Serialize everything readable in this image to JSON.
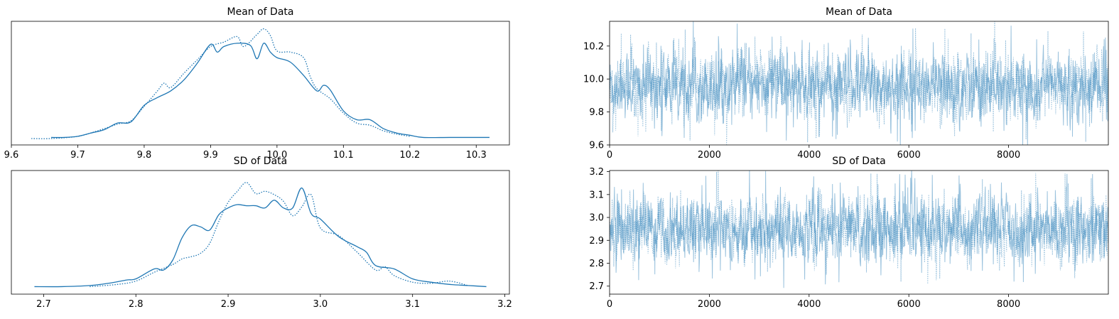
{
  "colors": {
    "series": "#1f77b4",
    "axis": "#000000",
    "background": "#ffffff"
  },
  "chart_data": [
    {
      "type": "line",
      "subtype": "kde",
      "title": "Mean of Data",
      "xlim": [
        9.6,
        10.35
      ],
      "xticks": [
        9.6,
        9.7,
        9.8,
        9.9,
        10.0,
        10.1,
        10.2,
        10.3
      ],
      "xtick_labels": [
        "9.6",
        "9.7",
        "9.8",
        "9.9",
        "10.0",
        "10.1",
        "10.2",
        "10.3"
      ],
      "yticks_shown": false,
      "series": [
        {
          "line_style": "solid",
          "x": [
            9.66,
            9.68,
            9.7,
            9.72,
            9.74,
            9.76,
            9.78,
            9.8,
            9.82,
            9.84,
            9.86,
            9.88,
            9.9,
            9.91,
            9.92,
            9.94,
            9.96,
            9.97,
            9.98,
            9.99,
            10.0,
            10.02,
            10.04,
            10.06,
            10.07,
            10.08,
            10.1,
            10.12,
            10.14,
            10.16,
            10.18,
            10.2,
            10.22,
            10.26,
            10.3,
            10.32
          ],
          "y": [
            0.01,
            0.01,
            0.02,
            0.05,
            0.08,
            0.14,
            0.15,
            0.3,
            0.37,
            0.43,
            0.53,
            0.68,
            0.85,
            0.78,
            0.83,
            0.86,
            0.84,
            0.72,
            0.86,
            0.78,
            0.73,
            0.69,
            0.57,
            0.43,
            0.48,
            0.44,
            0.25,
            0.17,
            0.17,
            0.09,
            0.05,
            0.03,
            0.01,
            0.01,
            0.01,
            0.01
          ]
        },
        {
          "line_style": "dotted",
          "x": [
            9.63,
            9.66,
            9.7,
            9.73,
            9.76,
            9.78,
            9.8,
            9.82,
            9.83,
            9.84,
            9.86,
            9.88,
            9.9,
            9.92,
            9.94,
            9.95,
            9.97,
            9.98,
            9.99,
            10.0,
            10.02,
            10.04,
            10.05,
            10.06,
            10.08,
            10.1,
            10.12,
            10.14,
            10.16,
            10.18,
            10.2
          ],
          "y": [
            0.0,
            0.0,
            0.02,
            0.07,
            0.13,
            0.16,
            0.29,
            0.43,
            0.5,
            0.46,
            0.59,
            0.71,
            0.83,
            0.87,
            0.92,
            0.83,
            0.94,
            0.99,
            0.93,
            0.79,
            0.78,
            0.73,
            0.56,
            0.45,
            0.36,
            0.23,
            0.14,
            0.12,
            0.07,
            0.04,
            0.02
          ]
        }
      ]
    },
    {
      "type": "line",
      "subtype": "trace",
      "title": "Mean of Data",
      "xlim": [
        0,
        10000
      ],
      "ylim": [
        9.6,
        10.35
      ],
      "xticks": [
        0,
        2000,
        4000,
        6000,
        8000
      ],
      "xtick_labels": [
        "0",
        "2000",
        "4000",
        "6000",
        "8000"
      ],
      "yticks": [
        9.6,
        9.8,
        10.0,
        10.2
      ],
      "ytick_labels": [
        "9.6",
        "9.8",
        "10.0",
        "10.2"
      ],
      "n_draws": 10000,
      "series": [
        {
          "line_style": "solid",
          "center": 9.96,
          "spread": 0.1
        },
        {
          "line_style": "dotted",
          "center": 9.96,
          "spread": 0.1
        }
      ]
    },
    {
      "type": "line",
      "subtype": "kde",
      "title": "SD of Data",
      "xlim": [
        2.665,
        3.205
      ],
      "xticks": [
        2.7,
        2.8,
        2.9,
        3.0,
        3.1,
        3.2
      ],
      "xtick_labels": [
        "2.7",
        "2.8",
        "2.9",
        "3.0",
        "3.1",
        "3.2"
      ],
      "yticks_shown": false,
      "series": [
        {
          "line_style": "solid",
          "x": [
            2.69,
            2.72,
            2.75,
            2.77,
            2.79,
            2.8,
            2.82,
            2.83,
            2.84,
            2.85,
            2.86,
            2.87,
            2.88,
            2.89,
            2.9,
            2.91,
            2.92,
            2.93,
            2.94,
            2.95,
            2.96,
            2.97,
            2.98,
            2.99,
            3.0,
            3.02,
            3.04,
            3.05,
            3.06,
            3.08,
            3.1,
            3.12,
            3.14,
            3.16,
            3.18
          ],
          "y": [
            0.01,
            0.01,
            0.02,
            0.04,
            0.07,
            0.08,
            0.17,
            0.16,
            0.25,
            0.45,
            0.56,
            0.55,
            0.52,
            0.66,
            0.72,
            0.75,
            0.74,
            0.74,
            0.72,
            0.79,
            0.72,
            0.72,
            0.9,
            0.67,
            0.62,
            0.46,
            0.37,
            0.32,
            0.2,
            0.17,
            0.08,
            0.05,
            0.03,
            0.02,
            0.01
          ]
        },
        {
          "line_style": "dotted",
          "x": [
            2.75,
            2.78,
            2.8,
            2.82,
            2.84,
            2.85,
            2.86,
            2.87,
            2.88,
            2.89,
            2.9,
            2.91,
            2.92,
            2.93,
            2.94,
            2.95,
            2.96,
            2.97,
            2.98,
            2.99,
            3.0,
            3.02,
            3.04,
            3.06,
            3.07,
            3.08,
            3.1,
            3.12,
            3.14,
            3.16
          ],
          "y": [
            0.01,
            0.03,
            0.06,
            0.14,
            0.21,
            0.26,
            0.28,
            0.31,
            0.4,
            0.6,
            0.77,
            0.87,
            0.95,
            0.85,
            0.87,
            0.84,
            0.78,
            0.65,
            0.73,
            0.84,
            0.54,
            0.47,
            0.32,
            0.16,
            0.19,
            0.11,
            0.05,
            0.04,
            0.06,
            0.02
          ]
        }
      ]
    },
    {
      "type": "line",
      "subtype": "trace",
      "title": "SD of Data",
      "xlim": [
        0,
        10000
      ],
      "ylim": [
        2.665,
        3.205
      ],
      "xticks": [
        0,
        2000,
        4000,
        6000,
        8000
      ],
      "xtick_labels": [
        "0",
        "2000",
        "4000",
        "6000",
        "8000"
      ],
      "yticks": [
        2.7,
        2.8,
        2.9,
        3.0,
        3.1,
        3.2
      ],
      "ytick_labels": [
        "2.7",
        "2.8",
        "2.9",
        "3.0",
        "3.1",
        "3.2"
      ],
      "n_draws": 10000,
      "series": [
        {
          "line_style": "solid",
          "center": 2.95,
          "spread": 0.07
        },
        {
          "line_style": "dotted",
          "center": 2.95,
          "spread": 0.07
        }
      ]
    }
  ]
}
